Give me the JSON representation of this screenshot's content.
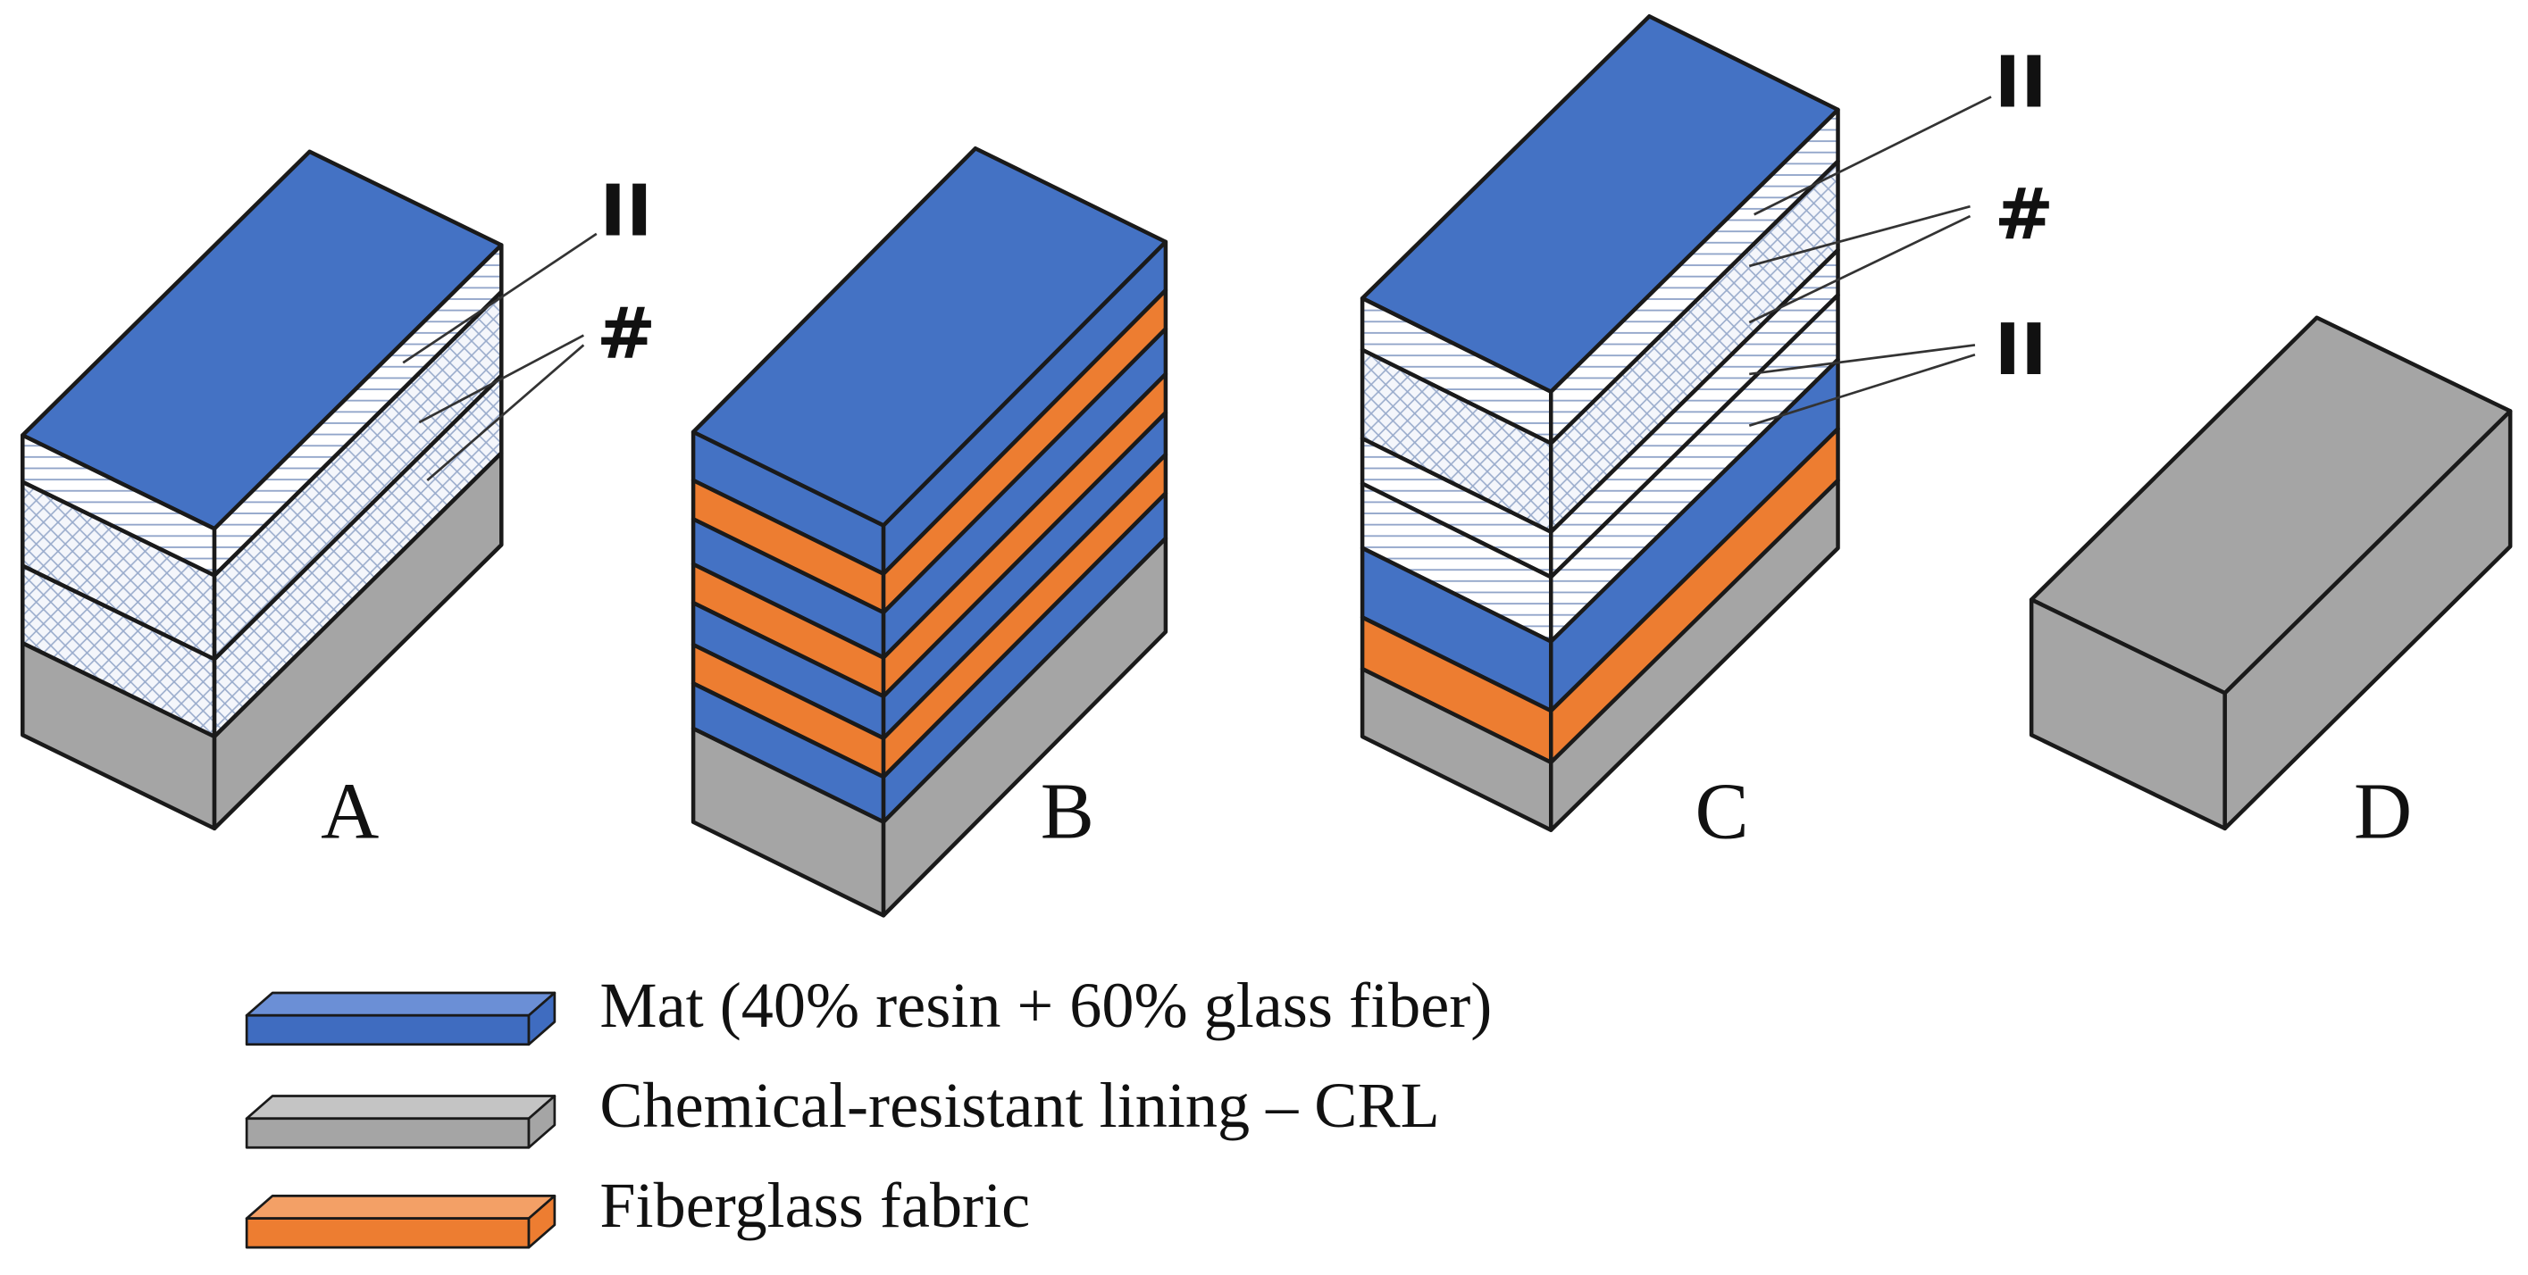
{
  "panels": [
    {
      "label": "A",
      "annotations": [
        "II",
        "#"
      ]
    },
    {
      "label": "B"
    },
    {
      "label": "C",
      "annotations": [
        "II",
        "#",
        "II"
      ]
    },
    {
      "label": "D"
    }
  ],
  "legend": [
    {
      "label": "Mat (40% resin + 60% glass fiber)"
    },
    {
      "label": "Chemical-resistant lining – CRL"
    },
    {
      "label": "Fiberglass fabric"
    }
  ]
}
